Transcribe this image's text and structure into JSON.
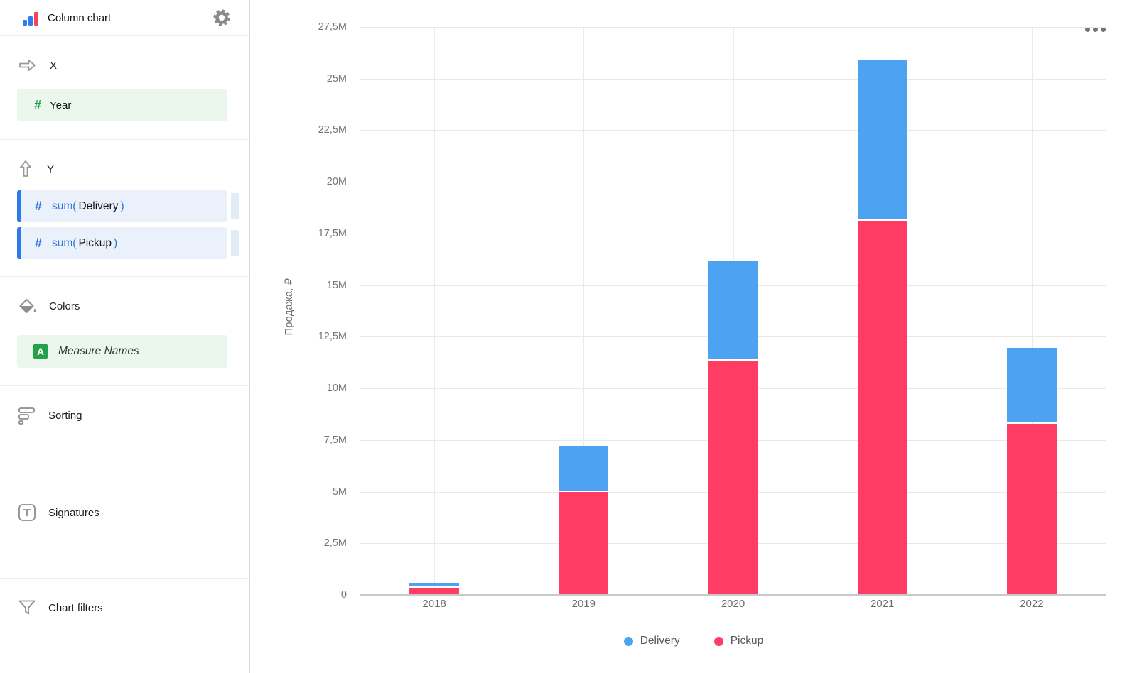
{
  "header": {
    "title": "Column chart"
  },
  "sidebar": {
    "x_section": {
      "label": "X",
      "field": {
        "label": "Year"
      }
    },
    "y_section": {
      "label": "Y",
      "fields": [
        {
          "fn": "sum(",
          "name": "Delivery",
          "close": ")"
        },
        {
          "fn": "sum(",
          "name": "Pickup",
          "close": ")"
        }
      ]
    },
    "colors_section": {
      "label": "Colors",
      "badge": "A",
      "field": {
        "label": "Measure Names"
      }
    },
    "sorting_section": {
      "label": "Sorting"
    },
    "signatures_section": {
      "label": "Signatures"
    },
    "filters_section": {
      "label": "Chart filters"
    }
  },
  "ui_colors": {
    "delivery_blue": "#4DA2F1",
    "pickup_pink": "#FF3D64",
    "measure_accent": "#2D7AE8",
    "dimension_green": "#1FA14D"
  },
  "chart_data": {
    "type": "bar",
    "stacked": true,
    "categories": [
      "2018",
      "2019",
      "2020",
      "2021",
      "2022"
    ],
    "series": [
      {
        "name": "Delivery",
        "color": "#4DA2F1",
        "values": [
          0.15,
          2.15,
          4.75,
          7.7,
          3.6
        ]
      },
      {
        "name": "Pickup",
        "color": "#FF3D64",
        "values": [
          0.35,
          5.0,
          11.35,
          18.1,
          8.3
        ]
      }
    ],
    "title": "",
    "xlabel": "",
    "ylabel": "Продажа, ₽",
    "ylim": [
      0,
      27.5
    ],
    "ytick_step": 2.5,
    "ytick_labels": [
      "0",
      "2,5M",
      "5M",
      "7,5M",
      "10M",
      "12,5M",
      "15M",
      "17,5M",
      "20M",
      "22,5M",
      "25M",
      "27,5M"
    ],
    "grid": true,
    "legend_position": "bottom"
  }
}
